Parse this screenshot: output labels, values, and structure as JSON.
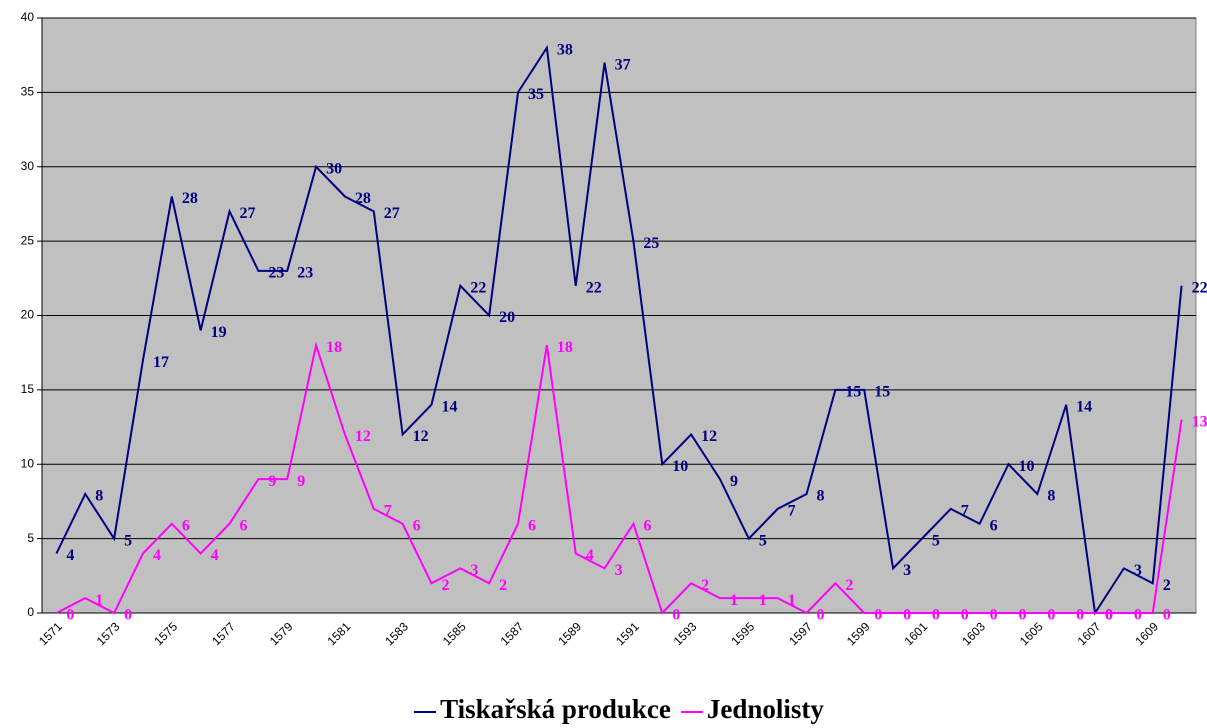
{
  "chart_data": {
    "type": "line",
    "categories": [
      "1571",
      null,
      "1573",
      null,
      "1575",
      null,
      "1577",
      null,
      "1579",
      null,
      "1581",
      null,
      "1583",
      null,
      "1585",
      null,
      "1587",
      null,
      "1589",
      null,
      "1591",
      null,
      "1593",
      null,
      "1595",
      null,
      "1597",
      null,
      "1599",
      null,
      "1601",
      null,
      "1603",
      null,
      "1605",
      null,
      "1607",
      null,
      "1609",
      null
    ],
    "series": [
      {
        "name": "Tiskařská produkce",
        "color": "#000080",
        "values": [
          4,
          8,
          5,
          17,
          28,
          19,
          27,
          23,
          23,
          30,
          28,
          27,
          12,
          14,
          22,
          20,
          35,
          38,
          22,
          37,
          25,
          10,
          12,
          9,
          5,
          7,
          8,
          15,
          15,
          3,
          5,
          7,
          6,
          10,
          8,
          14,
          0,
          3,
          2,
          22
        ]
      },
      {
        "name": "Jednolisty",
        "color": "#ff00ff",
        "values": [
          0,
          1,
          0,
          4,
          6,
          4,
          6,
          9,
          9,
          18,
          12,
          7,
          6,
          2,
          3,
          2,
          6,
          18,
          4,
          3,
          6,
          0,
          2,
          1,
          1,
          1,
          0,
          2,
          0,
          0,
          0,
          0,
          0,
          0,
          0,
          0,
          0,
          0,
          0,
          13
        ]
      }
    ],
    "ylim": [
      0,
      40
    ],
    "yticks": [
      0,
      5,
      10,
      15,
      20,
      25,
      30,
      35,
      40
    ],
    "grid": true,
    "legend": "bottom",
    "background": "#c0c0c0"
  }
}
